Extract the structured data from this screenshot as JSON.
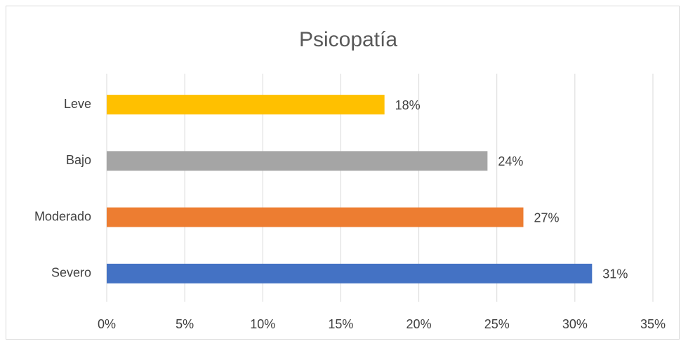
{
  "chart_data": {
    "type": "hbar",
    "title": "Psicopatía",
    "categories": [
      "Leve",
      "Bajo",
      "Moderado",
      "Severo"
    ],
    "values": [
      17.8,
      24.4,
      26.7,
      31.1
    ],
    "value_labels": [
      "18%",
      "24%",
      "27%",
      "31%"
    ],
    "colors": [
      "#FFC000",
      "#A5A5A5",
      "#ED7D31",
      "#4472C4"
    ],
    "xlim": [
      0,
      35
    ],
    "xticks": [
      {
        "value": 0,
        "label": "0%"
      },
      {
        "value": 5,
        "label": "5%"
      },
      {
        "value": 10,
        "label": "10%"
      },
      {
        "value": 15,
        "label": "15%"
      },
      {
        "value": 20,
        "label": "20%"
      },
      {
        "value": 25,
        "label": "25%"
      },
      {
        "value": 30,
        "label": "30%"
      },
      {
        "value": 35,
        "label": "35%"
      }
    ],
    "grid": true
  }
}
